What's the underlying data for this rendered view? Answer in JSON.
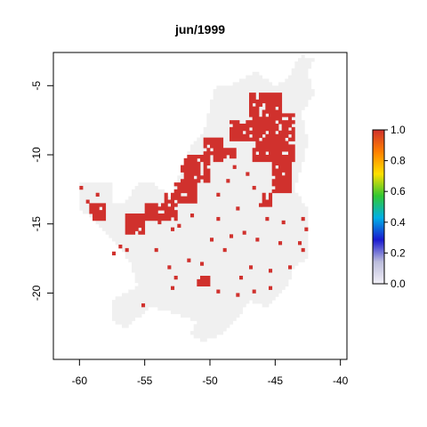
{
  "chart_data": {
    "type": "heatmap",
    "title": "jun/1999",
    "xlabel": "",
    "ylabel": "",
    "xlim": [
      -62,
      -39.5
    ],
    "ylim": [
      -24.8,
      -2.6
    ],
    "x_ticks": [
      -60,
      -55,
      -50,
      -45,
      -40
    ],
    "x_tick_labels": [
      "-60",
      "-55",
      "-50",
      "-45",
      "-40"
    ],
    "y_ticks": [
      -5,
      -10,
      -15,
      -20
    ],
    "y_tick_labels": [
      "-5",
      "-10",
      "-15",
      "-20"
    ],
    "cell_size_deg": 0.25,
    "value_range": [
      0,
      1
    ],
    "background_value_color": "#f0f0f0",
    "high_value_color": "#d0312d",
    "legend": {
      "ticks": [
        0.0,
        0.2,
        0.4,
        0.6,
        0.8,
        1.0
      ],
      "tick_labels": [
        "0.0",
        "0.2",
        "0.4",
        "0.6",
        "0.8",
        "1.0"
      ],
      "colors": [
        "#f2f0f7",
        "#bcbddc",
        "#1a1ad0",
        "#00b0e6",
        "#32c832",
        "#ffe000",
        "#ff8000",
        "#d0312d"
      ],
      "placement": "right"
    },
    "domain_region_outline": [
      [
        -60.0,
        -12.0
      ],
      [
        -57.5,
        -12.0
      ],
      [
        -57.5,
        -13.5
      ],
      [
        -56.5,
        -13.5
      ],
      [
        -55.5,
        -12.0
      ],
      [
        -54.5,
        -12.0
      ],
      [
        -53.0,
        -13.0
      ],
      [
        -52.0,
        -10.5
      ],
      [
        -51.5,
        -9.5
      ],
      [
        -50.5,
        -8.5
      ],
      [
        -50.0,
        -6.5
      ],
      [
        -49.5,
        -5.0
      ],
      [
        -48.5,
        -5.0
      ],
      [
        -47.5,
        -4.5
      ],
      [
        -46.5,
        -4.0
      ],
      [
        -45.0,
        -5.0
      ],
      [
        -44.0,
        -4.5
      ],
      [
        -43.5,
        -3.5
      ],
      [
        -43.0,
        -2.8
      ],
      [
        -42.0,
        -3.0
      ],
      [
        -42.5,
        -4.0
      ],
      [
        -42.0,
        -5.5
      ],
      [
        -43.0,
        -7.0
      ],
      [
        -42.5,
        -9.0
      ],
      [
        -43.0,
        -11.0
      ],
      [
        -43.5,
        -12.5
      ],
      [
        -42.5,
        -14.0
      ],
      [
        -42.5,
        -17.5
      ],
      [
        -43.5,
        -18.0
      ],
      [
        -44.0,
        -19.5
      ],
      [
        -45.5,
        -21.0
      ],
      [
        -47.0,
        -20.5
      ],
      [
        -48.0,
        -22.0
      ],
      [
        -49.0,
        -23.0
      ],
      [
        -50.5,
        -23.5
      ],
      [
        -51.5,
        -23.0
      ],
      [
        -51.0,
        -22.0
      ],
      [
        -52.5,
        -21.5
      ],
      [
        -54.5,
        -21.0
      ],
      [
        -56.5,
        -22.5
      ],
      [
        -57.5,
        -22.0
      ],
      [
        -57.5,
        -20.5
      ],
      [
        -55.5,
        -19.5
      ],
      [
        -56.0,
        -18.0
      ],
      [
        -57.0,
        -16.5
      ],
      [
        -58.5,
        -15.0
      ],
      [
        -59.0,
        -14.5
      ],
      [
        -60.0,
        -14.0
      ],
      [
        -60.0,
        -12.0
      ]
    ],
    "high_value_regions": [
      {
        "xmin": -46.75,
        "xmax": -43.5,
        "ymin": -10.5,
        "ymax": -7.0
      },
      {
        "xmin": -47.0,
        "xmax": -44.5,
        "ymin": -7.25,
        "ymax": -5.5
      },
      {
        "xmin": -48.5,
        "xmax": -46.5,
        "ymin": -9.0,
        "ymax": -7.5
      },
      {
        "xmin": -45.25,
        "xmax": -43.75,
        "ymin": -12.75,
        "ymax": -10.5
      },
      {
        "xmin": -50.5,
        "xmax": -49.0,
        "ymin": -10.5,
        "ymax": -8.75
      },
      {
        "xmin": -52.25,
        "xmax": -50.0,
        "ymin": -12.0,
        "ymax": -10.0
      },
      {
        "xmin": -53.5,
        "xmax": -51.0,
        "ymin": -13.5,
        "ymax": -12.0
      },
      {
        "xmin": -55.0,
        "xmax": -52.5,
        "ymin": -14.75,
        "ymax": -13.5
      },
      {
        "xmin": -56.5,
        "xmax": -55.0,
        "ymin": -15.75,
        "ymax": -14.25
      },
      {
        "xmin": -59.25,
        "xmax": -58.0,
        "ymin": -14.75,
        "ymax": -13.5
      },
      {
        "xmin": -51.0,
        "xmax": -50.0,
        "ymin": -19.5,
        "ymax": -18.75
      },
      {
        "xmin": -49.25,
        "xmax": -48.0,
        "ymin": -10.25,
        "ymax": -9.5
      },
      {
        "xmin": -46.0,
        "xmax": -45.25,
        "ymin": -13.75,
        "ymax": -12.75
      }
    ],
    "scattered_high_cells": [
      [
        -56.5,
        -17.0
      ],
      [
        -57.5,
        -17.25
      ],
      [
        -57.0,
        -16.75
      ],
      [
        -53.0,
        -15.5
      ],
      [
        -54.0,
        -15.0
      ],
      [
        -52.5,
        -15.25
      ],
      [
        -51.5,
        -14.5
      ],
      [
        -49.5,
        -14.75
      ],
      [
        -48.0,
        -14.0
      ],
      [
        -47.5,
        -15.75
      ],
      [
        -46.5,
        -16.25
      ],
      [
        -48.5,
        -16.0
      ],
      [
        -49.0,
        -17.0
      ],
      [
        -50.0,
        -16.25
      ],
      [
        -47.0,
        -18.25
      ],
      [
        -45.5,
        -18.5
      ],
      [
        -44.0,
        -18.25
      ],
      [
        -43.0,
        -17.0
      ],
      [
        -42.75,
        -15.5
      ],
      [
        -44.5,
        -15.0
      ],
      [
        -45.75,
        -14.75
      ],
      [
        -52.75,
        -19.0
      ],
      [
        -53.0,
        -19.75
      ],
      [
        -55.25,
        -21.0
      ],
      [
        -49.5,
        -20.0
      ],
      [
        -48.0,
        -20.25
      ],
      [
        -46.75,
        -20.0
      ],
      [
        -45.5,
        -19.75
      ],
      [
        -47.75,
        -19.0
      ],
      [
        -44.75,
        -16.5
      ],
      [
        -48.75,
        -12.0
      ],
      [
        -49.5,
        -13.0
      ],
      [
        -46.75,
        -12.5
      ],
      [
        -47.25,
        -11.5
      ],
      [
        -48.25,
        -11.0
      ],
      [
        -58.75,
        -13.0
      ],
      [
        -59.5,
        -13.5
      ],
      [
        -60.0,
        -12.5
      ],
      [
        -54.25,
        -17.0
      ],
      [
        -51.75,
        -17.75
      ],
      [
        -50.75,
        -18.0
      ],
      [
        -53.25,
        -18.25
      ],
      [
        -46.25,
        -13.75
      ],
      [
        -43.0,
        -14.75
      ],
      [
        -43.25,
        -16.5
      ]
    ]
  }
}
